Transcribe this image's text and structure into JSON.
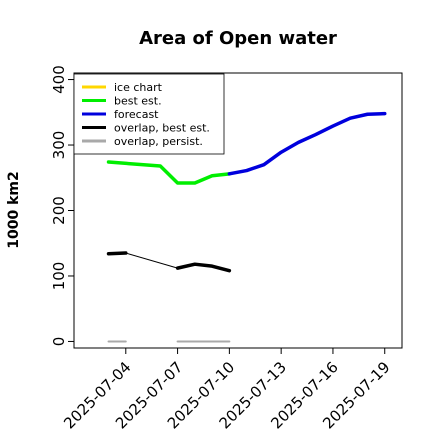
{
  "chart_data": {
    "type": "line",
    "title": "Area of Open water",
    "xlabel": "",
    "ylabel": "1000 km2",
    "xlim": [
      "2025-07-01",
      "2025-07-20"
    ],
    "ylim": [
      -10,
      410
    ],
    "yticks": [
      0,
      100,
      200,
      300,
      400
    ],
    "xticks": [
      "2025-07-04",
      "2025-07-07",
      "2025-07-10",
      "2025-07-13",
      "2025-07-16",
      "2025-07-19"
    ],
    "highlighted_xtick": "2025-07-10",
    "highlight_color": "#228B22",
    "grid": false,
    "legend_position": "upper-left",
    "series": [
      {
        "name": "ice chart",
        "color": "#FFD700",
        "width": 3,
        "x": [],
        "y": []
      },
      {
        "name": "best est.",
        "color": "#00EE00",
        "width": 3.5,
        "x": [
          "2025-07-03",
          "2025-07-06",
          "2025-07-07",
          "2025-07-08",
          "2025-07-09",
          "2025-07-10"
        ],
        "y": [
          274,
          268,
          242,
          242,
          253,
          256
        ]
      },
      {
        "name": "forecast",
        "color": "#0000DD",
        "width": 3.5,
        "x": [
          "2025-07-10",
          "2025-07-11",
          "2025-07-12",
          "2025-07-13",
          "2025-07-14",
          "2025-07-15",
          "2025-07-16",
          "2025-07-17",
          "2025-07-18",
          "2025-07-19"
        ],
        "y": [
          256,
          261,
          270,
          289,
          304,
          316,
          329,
          341,
          347,
          348
        ]
      },
      {
        "name": "overlap, best est.",
        "color": "#000000",
        "width": 3.5,
        "x": [
          "2025-07-03",
          "2025-07-04",
          "2025-07-07",
          "2025-07-08",
          "2025-07-09",
          "2025-07-10"
        ],
        "y": [
          134,
          135,
          112,
          118,
          115,
          108
        ],
        "thin_connector": [
          [
            "2025-07-04",
            135
          ],
          [
            "2025-07-07",
            112
          ]
        ]
      },
      {
        "name": "overlap, persist.",
        "color": "#A9A9A9",
        "width": 2,
        "segments": [
          {
            "x": [
              "2025-07-03",
              "2025-07-04"
            ],
            "y": [
              0,
              0
            ]
          },
          {
            "x": [
              "2025-07-07",
              "2025-07-10"
            ],
            "y": [
              0,
              0
            ]
          }
        ]
      }
    ]
  }
}
